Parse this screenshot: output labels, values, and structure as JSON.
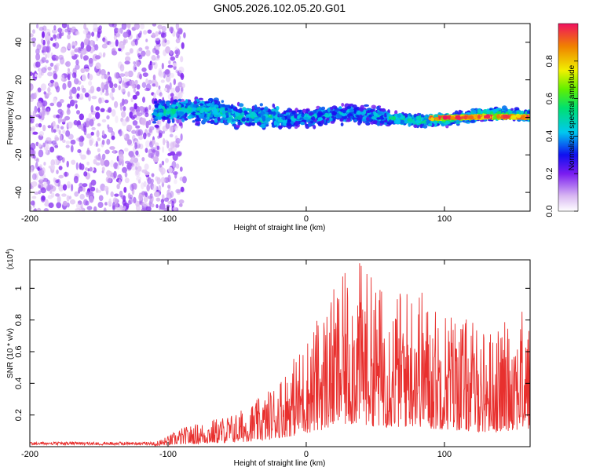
{
  "title": "GN05.2026.102.05.20.G01",
  "chart_data": [
    {
      "type": "heatmap",
      "xlabel": "Height of straight line (km)",
      "ylabel": "Frequency (Hz)",
      "xlim": [
        -200,
        162
      ],
      "ylim": [
        -50,
        50
      ],
      "xticks": [
        -200,
        -100,
        0,
        100
      ],
      "yticks": [
        -40,
        -20,
        0,
        20,
        40
      ],
      "colorbar": {
        "label": "Normalized spectral amplitude",
        "range": [
          0.0,
          1.0
        ],
        "ticks": [
          0.0,
          0.2,
          0.4,
          0.6,
          0.8
        ],
        "tick_labels": [
          "0.0",
          "0.2",
          "0.4",
          "0.6",
          "0.8"
        ]
      },
      "regions": [
        {
          "x": [
            -200,
            -100
          ],
          "freq": [
            -50,
            50
          ],
          "level": 0.12,
          "description": "broadband noise"
        },
        {
          "x": [
            -110,
            -20
          ],
          "freq_center": 2,
          "half_width": 8,
          "level": 0.35
        },
        {
          "x": [
            -20,
            60
          ],
          "freq_center": 0,
          "half_width": 6,
          "level": 0.3
        },
        {
          "x": [
            60,
            162
          ],
          "freq_center": 0,
          "half_width": 4,
          "level": 0.4
        },
        {
          "x": [
            90,
            162
          ],
          "freq_center": 0,
          "half_width": 1,
          "level": 0.9
        }
      ]
    },
    {
      "type": "line",
      "xlabel": "Height of straight line (km)",
      "ylabel": "SNR (10 * v/v)",
      "y_multiplier": "(x10",
      "y_multiplier_exp": "4",
      "y_multiplier_close": ")",
      "xlim": [
        -200,
        162
      ],
      "ylim": [
        0,
        1.18
      ],
      "xticks": [
        -200,
        -100,
        0,
        100
      ],
      "yticks": [
        0.2,
        0.4,
        0.6,
        0.8,
        1.0
      ],
      "series": [
        {
          "name": "SNR",
          "color": "#e8302e",
          "envelope_x": [
            -200,
            -150,
            -110,
            -100,
            -90,
            -70,
            -50,
            -30,
            -15,
            -5,
            0,
            10,
            20,
            30,
            40,
            50,
            60,
            70,
            80,
            90,
            100,
            110,
            120,
            130,
            140,
            150,
            162
          ],
          "envelope_y": [
            0.02,
            0.02,
            0.03,
            0.07,
            0.12,
            0.17,
            0.22,
            0.33,
            0.5,
            0.62,
            0.7,
            0.85,
            1.0,
            1.12,
            1.18,
            1.05,
            1.0,
            1.0,
            1.08,
            0.9,
            0.9,
            0.85,
            0.8,
            0.75,
            0.75,
            0.88,
            0.85
          ]
        }
      ]
    }
  ]
}
